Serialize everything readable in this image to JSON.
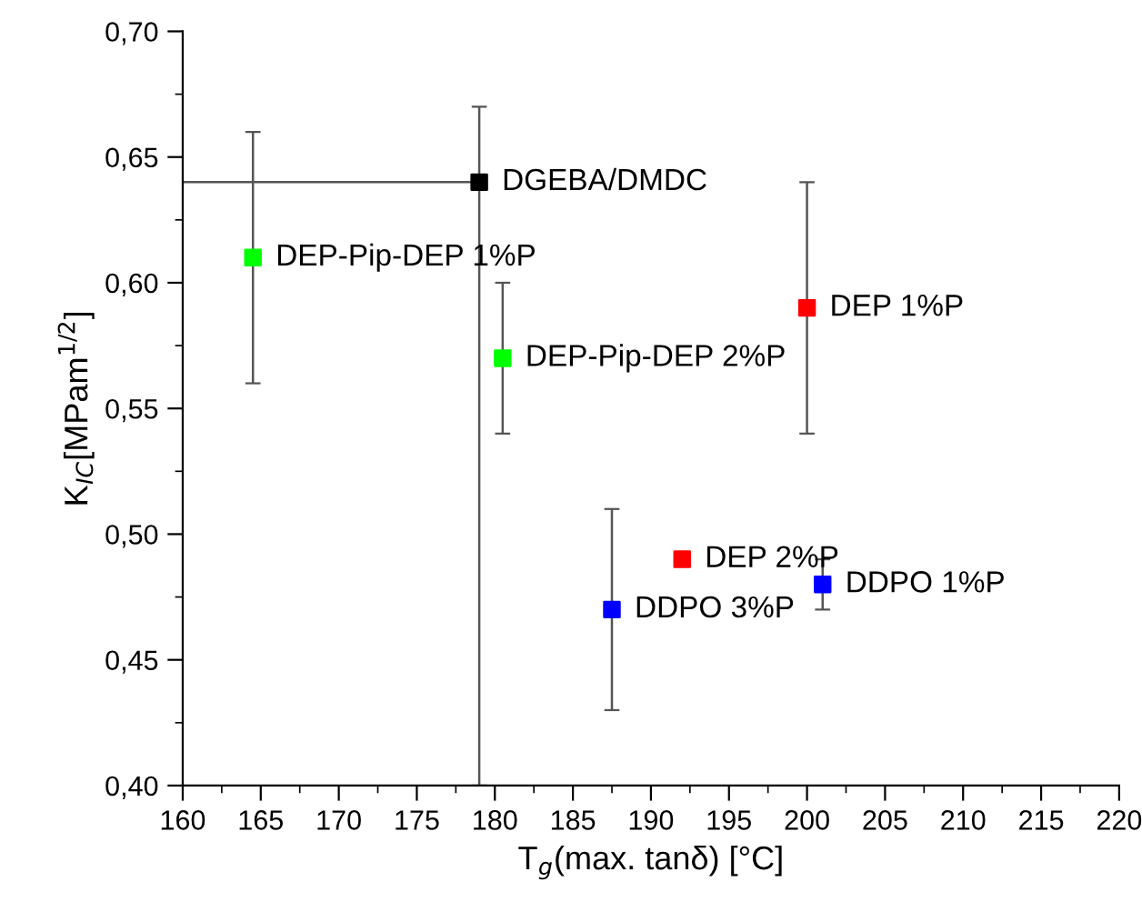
{
  "chart_data": {
    "type": "scatter",
    "xlabel": "T$_{g}$(max. tanδ) [°C]",
    "ylabel": "K$_{IC}$[MPam$^{1/2}$]",
    "xlim": [
      160,
      220
    ],
    "xticks": [
      160,
      165,
      170,
      175,
      180,
      185,
      190,
      195,
      200,
      205,
      210,
      215,
      220
    ],
    "ylim": [
      0.4,
      0.7
    ],
    "yticks": [
      {
        "value": 0.4,
        "label": "0,40"
      },
      {
        "value": 0.45,
        "label": "0,45"
      },
      {
        "value": 0.5,
        "label": "0,50"
      },
      {
        "value": 0.55,
        "label": "0,55"
      },
      {
        "value": 0.6,
        "label": "0,60"
      },
      {
        "value": 0.65,
        "label": "0,65"
      },
      {
        "value": 0.7,
        "label": "0,70"
      }
    ],
    "marker": "square",
    "grid": false,
    "legend": false,
    "series": [
      {
        "name": "DGEBA/DMDC",
        "color": "#000000",
        "x": [
          179
        ],
        "values": [
          0.64
        ],
        "errors": [
          [
            0.4,
            0.67
          ]
        ],
        "xerrors": [
          [
            160,
            179
          ]
        ]
      },
      {
        "name": "DEP-Pip-DEP 1%P",
        "color": "#00ff00",
        "x": [
          164.5
        ],
        "values": [
          0.61
        ],
        "errors": [
          [
            0.56,
            0.66
          ]
        ]
      },
      {
        "name": "DEP-Pip-DEP 2%P",
        "color": "#00ff00",
        "x": [
          180.5
        ],
        "values": [
          0.57
        ],
        "errors": [
          [
            0.54,
            0.6
          ]
        ]
      },
      {
        "name": "DEP 1%P",
        "color": "#ff0000",
        "x": [
          200
        ],
        "values": [
          0.59
        ],
        "errors": [
          [
            0.54,
            0.64
          ]
        ]
      },
      {
        "name": "DEP 2%P",
        "color": "#ff0000",
        "x": [
          192
        ],
        "values": [
          0.49
        ]
      },
      {
        "name": "DDPO 1%P",
        "color": "#0000ff",
        "x": [
          201
        ],
        "values": [
          0.48
        ],
        "errors": [
          [
            0.47,
            0.49
          ]
        ]
      },
      {
        "name": "DDPO 3%P",
        "color": "#0000ff",
        "x": [
          187.5
        ],
        "values": [
          0.47
        ],
        "errors": [
          [
            0.43,
            0.51
          ]
        ]
      }
    ]
  }
}
